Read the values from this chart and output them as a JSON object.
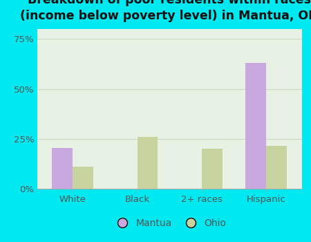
{
  "title": "Breakdown of poor residents within races\n(income below poverty level) in Mantua, OH",
  "categories": [
    "White",
    "Black",
    "2+ races",
    "Hispanic"
  ],
  "mantua_values": [
    20.5,
    0,
    0,
    63.0
  ],
  "ohio_values": [
    11.0,
    26.0,
    20.0,
    21.5
  ],
  "mantua_color": "#c9a8e0",
  "ohio_color": "#c8d4a0",
  "background_outer": "#00e8f0",
  "background_inner": "#e8f2e4",
  "ylim": [
    0,
    80
  ],
  "yticks": [
    0,
    25,
    50,
    75
  ],
  "ytick_labels": [
    "0%",
    "25%",
    "50%",
    "75%"
  ],
  "title_fontsize": 12.5,
  "tick_fontsize": 9.5,
  "legend_fontsize": 10,
  "bar_width": 0.32,
  "grid_color": "#ccd8c0",
  "axis_color": "#aaaaaa",
  "text_color": "#555555",
  "legend_label_mantua": "Mantua",
  "legend_label_ohio": "Ohio"
}
